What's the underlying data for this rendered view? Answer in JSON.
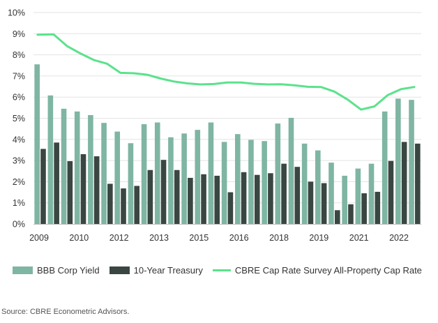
{
  "chart_data": {
    "type": "bar",
    "title": "",
    "xlabel": "",
    "ylabel": "",
    "ylim": [
      0,
      10
    ],
    "y_ticks": [
      "0%",
      "1%",
      "2%",
      "3%",
      "4%",
      "5%",
      "6%",
      "7%",
      "8%",
      "9%",
      "10%"
    ],
    "x_tick_labels": [
      "2009",
      "2010",
      "2012",
      "2013",
      "2015",
      "2016",
      "2018",
      "2019",
      "2021",
      "2022"
    ],
    "grid": "horizontal",
    "legend_position": "bottom",
    "categories": [
      "2009 Q1",
      "2009 Q3",
      "2010 Q1",
      "2010 Q3",
      "2011 Q1",
      "2011 Q3",
      "2012 Q1",
      "2012 Q3",
      "2013 Q1",
      "2013 Q3",
      "2014 Q1",
      "2014 Q3",
      "2015 Q1",
      "2015 Q3",
      "2016 Q1",
      "2016 Q3",
      "2017 Q1",
      "2017 Q3",
      "2018 Q1",
      "2018 Q3",
      "2019 Q1",
      "2019 Q3",
      "2020 Q1",
      "2020 Q3",
      "2021 Q1",
      "2021 Q3",
      "2022 Q1",
      "2022 Q3",
      "2022 Q4"
    ],
    "series": [
      {
        "name": "BBB Corp Yield",
        "kind": "bar",
        "color": "#7fb5a3",
        "values": [
          7.55,
          6.08,
          5.45,
          5.32,
          5.15,
          4.78,
          4.37,
          3.82,
          4.72,
          4.8,
          4.1,
          4.28,
          4.45,
          4.8,
          3.88,
          4.25,
          3.98,
          3.92,
          4.75,
          5.02,
          3.8,
          3.48,
          2.9,
          2.28,
          2.62,
          2.85,
          5.32,
          5.93,
          5.87
        ]
      },
      {
        "name": "10-Year Treasury",
        "kind": "bar",
        "color": "#3a4642",
        "values": [
          3.55,
          3.85,
          2.97,
          3.3,
          3.2,
          1.9,
          1.68,
          1.8,
          2.55,
          3.03,
          2.55,
          2.18,
          2.35,
          2.28,
          1.5,
          2.45,
          2.32,
          2.4,
          2.85,
          2.7,
          2.0,
          1.93,
          0.65,
          0.93,
          1.45,
          1.52,
          2.98,
          3.88,
          3.8
        ]
      },
      {
        "name": "CBRE Cap Rate Survey All-Property Cap Rate",
        "kind": "line",
        "color": "#5be28c",
        "values": [
          8.95,
          8.97,
          8.42,
          8.07,
          7.76,
          7.58,
          7.15,
          7.13,
          7.06,
          6.88,
          6.74,
          6.65,
          6.6,
          6.62,
          6.69,
          6.69,
          6.63,
          6.6,
          6.61,
          6.56,
          6.49,
          6.48,
          6.26,
          5.88,
          5.41,
          5.56,
          6.1,
          6.38,
          6.48
        ]
      }
    ]
  },
  "source_text": "Source: CBRE Econometric Advisors."
}
